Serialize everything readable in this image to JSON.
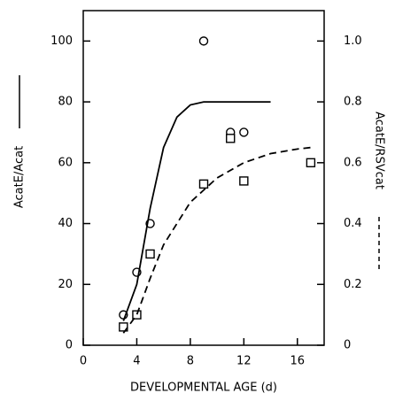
{
  "chart_data": {
    "type": "scatter",
    "xlabel": "DEVELOPMENTAL AGE (d)",
    "ylabel": "AcatE/Acat",
    "y2label": "AcatE/RSVcat",
    "xlim": [
      0,
      18
    ],
    "xticks": [
      0,
      4,
      8,
      12,
      16
    ],
    "ylim": [
      0,
      110
    ],
    "yticks": [
      0,
      20,
      40,
      60,
      80,
      100
    ],
    "y2lim": [
      0,
      1.1
    ],
    "y2ticks": [
      0,
      0.2,
      0.4,
      0.6,
      0.8,
      {
        "value": 1,
        "label": "1.0"
      }
    ],
    "series": [
      {
        "color": "#000000",
        "marker": "circle",
        "x": [
          3,
          4,
          5,
          9,
          11,
          12
        ],
        "values": [
          10,
          24,
          40,
          100,
          70,
          70
        ]
      },
      {
        "color": "#000000",
        "marker": "square",
        "axis": "y2",
        "x": [
          3,
          4,
          5,
          9,
          11,
          12,
          17
        ],
        "values": [
          0.06,
          0.1,
          0.3,
          0.53,
          0.68,
          0.54,
          0.6
        ]
      },
      {
        "color": "#000000",
        "line": "solid",
        "x": [
          3,
          4,
          5,
          6,
          7,
          8,
          9,
          10,
          12,
          14
        ],
        "values": [
          8,
          20,
          45,
          65,
          75,
          79,
          80,
          80,
          80,
          80
        ]
      },
      {
        "color": "#000000",
        "line": "dashed",
        "axis": "y2",
        "x": [
          3,
          4,
          5,
          6,
          8,
          10,
          12,
          14,
          16,
          17
        ],
        "values": [
          0.04,
          0.1,
          0.22,
          0.33,
          0.47,
          0.55,
          0.6,
          0.63,
          0.645,
          0.65
        ]
      }
    ]
  }
}
